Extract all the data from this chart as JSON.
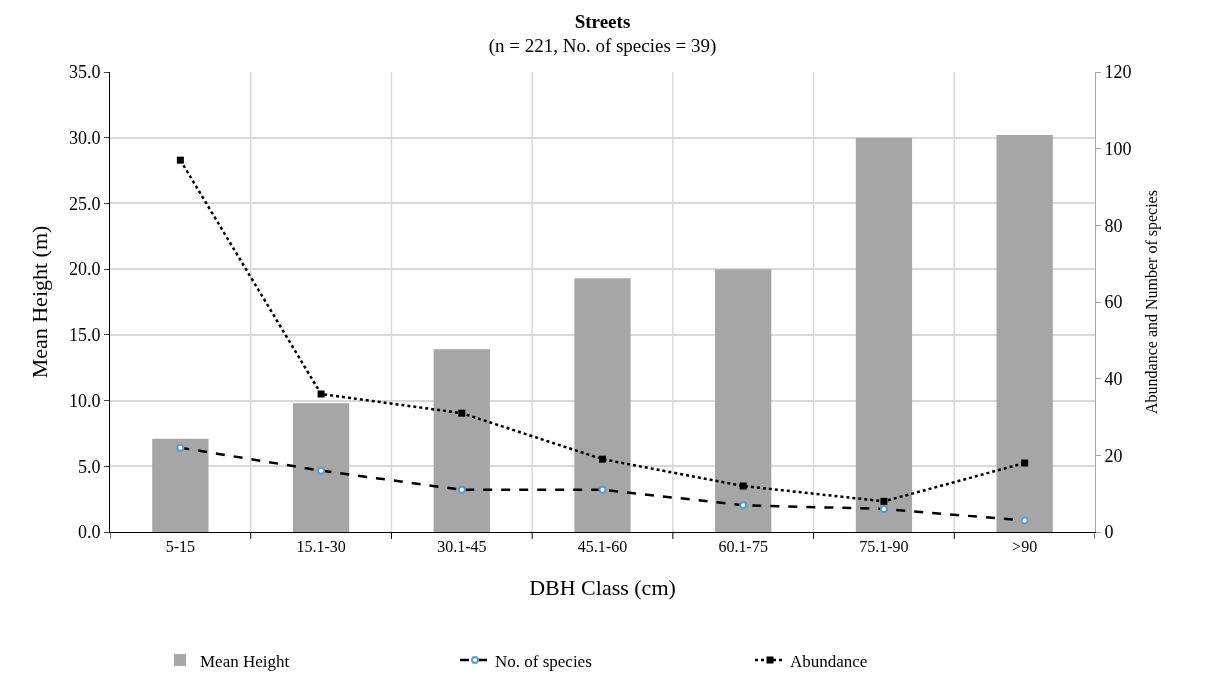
{
  "chart_data": {
    "type": "bar",
    "title": "Streets",
    "subtitle": "(n = 221, No. of species = 39)",
    "xlabel": "DBH Class (cm)",
    "ylabel": "Mean Height (m)",
    "y2label": "Abundance and Number of species",
    "categories": [
      "5-15",
      "15.1-30",
      "30.1-45",
      "45.1-60",
      "60.1-75",
      "75.1-90",
      ">90"
    ],
    "series": [
      {
        "name": "Mean Height",
        "color": "#a6a6a6",
        "values": [
          7.1,
          9.8,
          13.9,
          19.3,
          20.0,
          30.0,
          30.2
        ]
      },
      {
        "name": "No. of species",
        "type": "line",
        "axis": "y2",
        "color": "#000000",
        "line_style": "dashed",
        "marker": "circle",
        "values": [
          22,
          16,
          11,
          11,
          7,
          6,
          3
        ]
      },
      {
        "name": "Abundance",
        "type": "line",
        "axis": "y2",
        "color": "#000000",
        "line_style": "dotted",
        "marker": "square",
        "values": [
          97,
          36,
          31,
          19,
          12,
          8,
          18
        ]
      }
    ],
    "ylim": [
      0,
      35
    ],
    "yticks": [
      {
        "value": 0,
        "label": "0.0"
      },
      {
        "value": 5,
        "label": "5.0"
      },
      {
        "value": 10,
        "label": "10.0"
      },
      {
        "value": 15,
        "label": "15.0"
      },
      {
        "value": 20,
        "label": "20.0"
      },
      {
        "value": 25,
        "label": "25.0"
      },
      {
        "value": 30,
        "label": "30.0"
      },
      {
        "value": 35,
        "label": "35.0"
      }
    ],
    "y2lim": [
      0,
      120
    ],
    "y2ticks": [
      0,
      20,
      40,
      60,
      80,
      100,
      120
    ],
    "grid": true,
    "legend": "bottom"
  }
}
